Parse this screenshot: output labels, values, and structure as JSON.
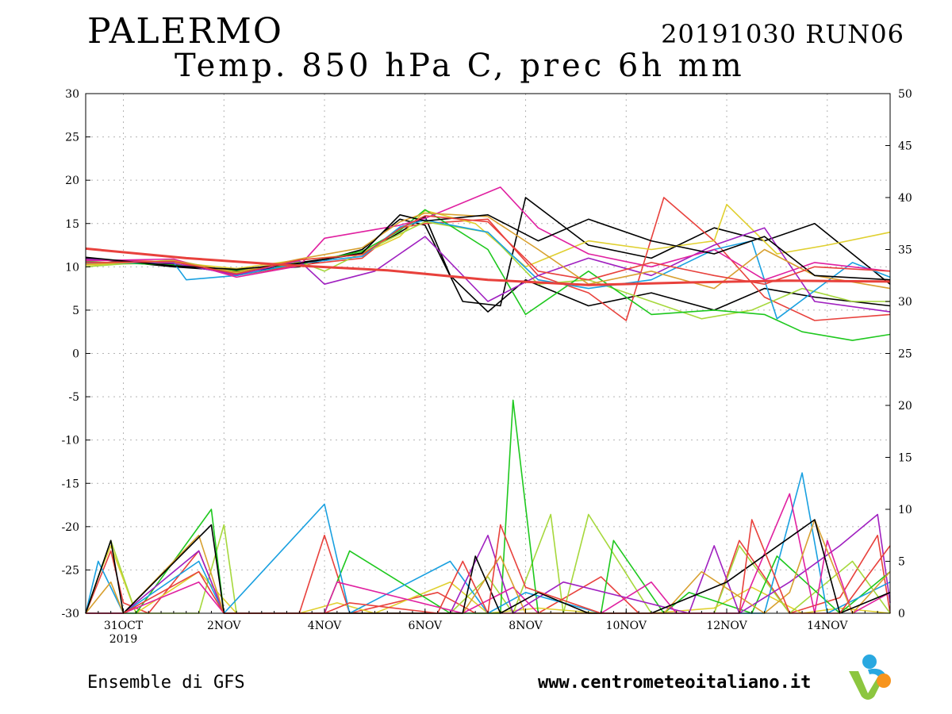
{
  "header": {
    "location": "PALERMO",
    "run": "20191030 RUN06",
    "variable": "Temp. 850 hPa C, prec 6h mm"
  },
  "footer": {
    "model": "Ensemble di GFS",
    "website": "www.centrometeoitaliano.it"
  },
  "logo": {
    "name": "centrometeoitaliano-logo",
    "colors": [
      "#29a8e0",
      "#8cc63f",
      "#f7941d"
    ]
  },
  "colors": {
    "mean": "#e8413c",
    "members": [
      "#000000",
      "#000000",
      "#e8413c",
      "#e0d030",
      "#a6d83c",
      "#1ec81e",
      "#19a0e0",
      "#a020c0",
      "#e020a0",
      "#d8a030",
      "#000000",
      "#e8413c",
      "#e0d030",
      "#1ec81e",
      "#a020c0",
      "#19a0e0",
      "#a6d83c",
      "#d8a030",
      "#000000",
      "#e020a0"
    ]
  },
  "chart_data": {
    "type": "line",
    "x_start": "2019-10-30T06",
    "x_end": "2019-11-15T06",
    "x_ticks": [
      {
        "date": "2019-10-31",
        "label": "31OCT",
        "sublabel": "2019"
      },
      {
        "date": "2019-11-02",
        "label": "2NOV"
      },
      {
        "date": "2019-11-04",
        "label": "4NOV"
      },
      {
        "date": "2019-11-06",
        "label": "6NOV"
      },
      {
        "date": "2019-11-08",
        "label": "8NOV"
      },
      {
        "date": "2019-11-10",
        "label": "10NOV"
      },
      {
        "date": "2019-11-12",
        "label": "12NOV"
      },
      {
        "date": "2019-11-14",
        "label": "14NOV"
      }
    ],
    "y_left": {
      "label": "",
      "ylim": [
        -30,
        30
      ],
      "ticks": [
        30,
        25,
        20,
        15,
        10,
        5,
        0,
        -5,
        -10,
        -15,
        -20,
        -25,
        -30
      ]
    },
    "y_right": {
      "label": "",
      "ylim": [
        0,
        50
      ],
      "ticks": [
        50,
        45,
        40,
        35,
        30,
        25,
        20,
        15,
        10,
        5,
        0
      ]
    },
    "grid": true,
    "mean_series": {
      "axis": "left",
      "x": [
        "2019-10-30T06",
        "2019-11-01T06",
        "2019-11-03T06",
        "2019-11-05T06",
        "2019-11-07T06",
        "2019-11-09T06",
        "2019-11-11T06",
        "2019-11-13T06",
        "2019-11-15T06"
      ],
      "values": [
        12.1,
        11.0,
        10.2,
        9.6,
        8.5,
        7.9,
        8.2,
        8.4,
        8.3
      ]
    },
    "temperature_members": [
      {
        "x": [
          "2019-10-30T06",
          "2019-11-01T00",
          "2019-11-02T06",
          "2019-11-03T12",
          "2019-11-04T18",
          "2019-11-05T12",
          "2019-11-06T00",
          "2019-11-06T12",
          "2019-11-07T06",
          "2019-11-08T00",
          "2019-11-09T06",
          "2019-11-10T12",
          "2019-11-11T18",
          "2019-11-12T18",
          "2019-11-13T18",
          "2019-11-15T06"
        ],
        "values": [
          10.5,
          10.3,
          9.2,
          10.5,
          11.5,
          14.0,
          15.8,
          9.0,
          4.8,
          8.5,
          5.5,
          7.0,
          5.0,
          7.5,
          6.5,
          5.5
        ]
      },
      {
        "x": [
          "2019-10-30T06",
          "2019-11-01T00",
          "2019-11-02T06",
          "2019-11-03T12",
          "2019-11-04T18",
          "2019-11-05T12",
          "2019-11-06T00",
          "2019-11-06T18",
          "2019-11-07T12",
          "2019-11-08T00",
          "2019-11-09T06",
          "2019-11-10T12",
          "2019-11-11T18",
          "2019-11-12T18",
          "2019-11-13T18",
          "2019-11-15T06"
        ],
        "values": [
          11.0,
          10.0,
          9.5,
          10.0,
          12.0,
          15.5,
          14.8,
          6.0,
          5.5,
          18.0,
          12.5,
          11.0,
          14.5,
          13.0,
          15.0,
          8.0
        ]
      },
      {
        "x": [
          "2019-10-30T06",
          "2019-11-01T00",
          "2019-11-02T06",
          "2019-11-03T12",
          "2019-11-04T18",
          "2019-11-05T12",
          "2019-11-06T00",
          "2019-11-07T06",
          "2019-11-08T06",
          "2019-11-09T06",
          "2019-11-10T00",
          "2019-11-10T18",
          "2019-11-11T18",
          "2019-11-12T18",
          "2019-11-13T18",
          "2019-11-15T06"
        ],
        "values": [
          10.8,
          10.6,
          9.0,
          10.2,
          11.0,
          14.5,
          15.0,
          15.5,
          9.0,
          7.0,
          3.8,
          18.0,
          13.0,
          6.5,
          3.8,
          4.5
        ]
      },
      {
        "x": [
          "2019-10-30T06",
          "2019-11-01T00",
          "2019-11-02T06",
          "2019-11-03T12",
          "2019-11-04T18",
          "2019-11-05T12",
          "2019-11-06T00",
          "2019-11-07T00",
          "2019-11-08T00",
          "2019-11-09T06",
          "2019-11-10T12",
          "2019-11-11T18",
          "2019-11-12T00",
          "2019-11-13T00",
          "2019-11-14T00",
          "2019-11-15T06"
        ],
        "values": [
          10.2,
          10.5,
          9.8,
          10.8,
          11.5,
          13.5,
          16.5,
          15.0,
          10.0,
          13.0,
          12.0,
          13.0,
          17.2,
          11.5,
          12.5,
          14.0
        ]
      },
      {
        "x": [
          "2019-10-30T06",
          "2019-11-01T00",
          "2019-11-02T06",
          "2019-11-03T12",
          "2019-11-04T00",
          "2019-11-05T12",
          "2019-11-06T00",
          "2019-11-07T06",
          "2019-11-08T06",
          "2019-11-09T06",
          "2019-11-10T12",
          "2019-11-11T12",
          "2019-11-12T12",
          "2019-11-13T12",
          "2019-11-14T12",
          "2019-11-15T06"
        ],
        "values": [
          10.0,
          10.8,
          9.3,
          10.6,
          9.5,
          13.8,
          15.2,
          14.0,
          8.0,
          8.5,
          6.0,
          4.0,
          5.0,
          7.5,
          6.0,
          6.0
        ]
      },
      {
        "x": [
          "2019-10-30T06",
          "2019-11-01T00",
          "2019-11-02T06",
          "2019-11-03T12",
          "2019-11-04T18",
          "2019-11-05T12",
          "2019-11-06T00",
          "2019-11-07T06",
          "2019-11-08T00",
          "2019-11-09T06",
          "2019-11-10T12",
          "2019-11-11T18",
          "2019-11-12T18",
          "2019-11-13T12",
          "2019-11-14T12",
          "2019-11-15T06"
        ],
        "values": [
          10.6,
          10.2,
          9.6,
          10.3,
          11.8,
          14.2,
          16.6,
          12.0,
          4.5,
          9.5,
          4.5,
          5.0,
          4.5,
          2.5,
          1.5,
          2.2
        ]
      },
      {
        "x": [
          "2019-10-30T06",
          "2019-11-01T00",
          "2019-11-01T06",
          "2019-11-02T06",
          "2019-11-03T12",
          "2019-11-04T18",
          "2019-11-05T12",
          "2019-11-06T00",
          "2019-11-07T06",
          "2019-11-08T06",
          "2019-11-09T06",
          "2019-11-10T12",
          "2019-11-11T18",
          "2019-11-12T12",
          "2019-11-13T00",
          "2019-11-14T12",
          "2019-11-15T06"
        ],
        "values": [
          10.4,
          10.5,
          8.5,
          9.0,
          10.4,
          11.2,
          14.6,
          15.4,
          14.0,
          8.5,
          7.5,
          8.5,
          12.0,
          13.0,
          4.0,
          10.5,
          8.8
        ]
      },
      {
        "x": [
          "2019-10-30T06",
          "2019-11-01T00",
          "2019-11-02T06",
          "2019-11-03T12",
          "2019-11-04T00",
          "2019-11-05T00",
          "2019-11-06T00",
          "2019-11-07T06",
          "2019-11-08T06",
          "2019-11-09T06",
          "2019-11-10T12",
          "2019-11-11T18",
          "2019-11-12T18",
          "2019-11-13T18",
          "2019-11-15T06"
        ],
        "values": [
          10.9,
          10.4,
          9.1,
          10.7,
          8.0,
          9.5,
          13.5,
          6.0,
          9.0,
          11.0,
          9.0,
          12.5,
          14.5,
          6.0,
          4.8
        ]
      },
      {
        "x": [
          "2019-10-30T06",
          "2019-11-01T00",
          "2019-11-02T06",
          "2019-11-03T12",
          "2019-11-04T00",
          "2019-11-05T12",
          "2019-11-06T00",
          "2019-11-07T12",
          "2019-11-08T06",
          "2019-11-09T06",
          "2019-11-10T12",
          "2019-11-11T18",
          "2019-11-12T18",
          "2019-11-13T18",
          "2019-11-15T06"
        ],
        "values": [
          10.7,
          10.9,
          8.8,
          10.1,
          13.3,
          14.8,
          15.6,
          19.2,
          14.5,
          11.5,
          10.0,
          12.0,
          8.5,
          10.5,
          9.5
        ]
      },
      {
        "x": [
          "2019-10-30T06",
          "2019-11-01T00",
          "2019-11-02T06",
          "2019-11-03T12",
          "2019-11-04T18",
          "2019-11-05T12",
          "2019-11-06T00",
          "2019-11-07T06",
          "2019-11-08T06",
          "2019-11-09T06",
          "2019-11-10T12",
          "2019-11-11T18",
          "2019-11-12T18",
          "2019-11-13T18",
          "2019-11-15T06"
        ],
        "values": [
          10.3,
          10.7,
          9.4,
          10.9,
          12.2,
          15.2,
          16.2,
          15.8,
          12.0,
          8.0,
          9.5,
          7.5,
          12.0,
          9.0,
          7.5
        ]
      },
      {
        "x": [
          "2019-10-30T06",
          "2019-11-01T00",
          "2019-11-02T06",
          "2019-11-03T12",
          "2019-11-04T18",
          "2019-11-05T12",
          "2019-11-06T00",
          "2019-11-07T06",
          "2019-11-08T06",
          "2019-11-09T06",
          "2019-11-10T12",
          "2019-11-11T18",
          "2019-11-12T18",
          "2019-11-13T18",
          "2019-11-15T06"
        ],
        "values": [
          11.1,
          10.1,
          9.7,
          10.4,
          11.6,
          16.0,
          15.3,
          16.0,
          13.0,
          15.5,
          13.0,
          11.5,
          13.5,
          9.0,
          8.5
        ]
      },
      {
        "x": [
          "2019-10-30T06",
          "2019-11-01T00",
          "2019-11-02T06",
          "2019-11-03T12",
          "2019-11-04T18",
          "2019-11-05T12",
          "2019-11-06T00",
          "2019-11-07T06",
          "2019-11-08T06",
          "2019-11-09T06",
          "2019-11-10T12",
          "2019-11-11T18",
          "2019-11-12T18",
          "2019-11-13T18",
          "2019-11-15T06"
        ],
        "values": [
          10.5,
          10.6,
          9.2,
          10.8,
          11.4,
          14.4,
          15.9,
          15.2,
          9.5,
          8.5,
          10.5,
          9.0,
          8.0,
          10.0,
          9.5
        ]
      }
    ],
    "precipitation_members": [
      {
        "x": [
          "2019-10-30T06",
          "2019-10-30T18",
          "2019-10-31T00",
          "2019-10-31T12",
          "2019-11-01T12",
          "2019-11-02T00",
          "2019-11-03T12",
          "2019-11-04T00",
          "2019-11-04T12",
          "2019-11-06T06",
          "2019-11-07T00",
          "2019-11-08T06",
          "2019-11-09T12",
          "2019-11-10T06",
          "2019-11-11T18",
          "2019-11-12T06",
          "2019-11-13T06",
          "2019-11-14T06",
          "2019-11-15T00",
          "2019-11-15T06"
        ],
        "values": [
          0,
          6,
          1,
          0,
          6,
          0,
          0,
          7.5,
          0,
          2,
          0,
          0,
          3.5,
          0,
          0,
          7,
          0,
          1.5,
          7.5,
          0
        ]
      },
      {
        "x": [
          "2019-10-30T06",
          "2019-10-30T12",
          "2019-10-30T18",
          "2019-10-31T06",
          "2019-11-01T12",
          "2019-11-02T06",
          "2019-11-03T12",
          "2019-11-04T06",
          "2019-11-05T00",
          "2019-11-06T12",
          "2019-11-07T06",
          "2019-11-08T06",
          "2019-11-09T12",
          "2019-11-10T12",
          "2019-11-11T18",
          "2019-11-12T12",
          "2019-11-13T12",
          "2019-11-14T06",
          "2019-11-15T06"
        ],
        "values": [
          0,
          3.5,
          6.5,
          0,
          4,
          0,
          0,
          1,
          0,
          3,
          0,
          0.5,
          0,
          0,
          0.5,
          2.5,
          0,
          0.5,
          0
        ]
      },
      {
        "x": [
          "2019-10-30T06",
          "2019-10-30T18",
          "2019-10-31T06",
          "2019-11-01T12",
          "2019-11-02T00",
          "2019-11-02T06",
          "2019-11-06T12",
          "2019-11-07T06",
          "2019-11-07T18",
          "2019-11-08T12",
          "2019-11-08T18",
          "2019-11-09T06",
          "2019-11-10T12",
          "2019-11-11T18",
          "2019-11-12T06",
          "2019-11-13T06",
          "2019-11-14T12",
          "2019-11-15T06"
        ],
        "values": [
          0,
          7,
          0,
          0,
          8.5,
          0,
          0,
          3.5,
          0,
          9.5,
          0,
          9.5,
          0,
          0,
          6.5,
          0,
          5,
          0
        ]
      },
      {
        "x": [
          "2019-10-30T06",
          "2019-10-31T06",
          "2019-11-01T18",
          "2019-11-02T00",
          "2019-11-04T00",
          "2019-11-04T12",
          "2019-11-06T12",
          "2019-11-07T12",
          "2019-11-07T18",
          "2019-11-08T06",
          "2019-11-09T12",
          "2019-11-09T18",
          "2019-11-10T18",
          "2019-11-11T06",
          "2019-11-12T12",
          "2019-11-13T00",
          "2019-11-14T06",
          "2019-11-15T06"
        ],
        "values": [
          0,
          0,
          10,
          0,
          0,
          6,
          0,
          0,
          20.5,
          0,
          0,
          7,
          0,
          2,
          0,
          5.5,
          0,
          4
        ]
      },
      {
        "x": [
          "2019-10-30T06",
          "2019-10-30T12",
          "2019-10-31T00",
          "2019-11-01T12",
          "2019-11-02T00",
          "2019-11-04T00",
          "2019-11-04T12",
          "2019-11-06T12",
          "2019-11-07T06",
          "2019-11-08T00",
          "2019-11-09T12",
          "2019-11-11T12",
          "2019-11-12T18",
          "2019-11-13T12",
          "2019-11-14T00",
          "2019-11-15T06"
        ],
        "values": [
          0,
          5,
          0,
          5,
          0,
          10.5,
          0,
          5,
          0,
          2,
          0,
          0,
          0,
          13.5,
          0,
          3
        ]
      },
      {
        "x": [
          "2019-10-30T06",
          "2019-10-31T00",
          "2019-11-01T12",
          "2019-11-02T00",
          "2019-11-06T12",
          "2019-11-07T06",
          "2019-11-07T18",
          "2019-11-08T18",
          "2019-11-11T06",
          "2019-11-11T18",
          "2019-11-12T06",
          "2019-11-13T06",
          "2019-11-14T06",
          "2019-11-15T00",
          "2019-11-15T06"
        ],
        "values": [
          0,
          0,
          6,
          0,
          0,
          7.5,
          0,
          3,
          0,
          6.5,
          0,
          3,
          6.5,
          9.5,
          1
        ]
      },
      {
        "x": [
          "2019-10-30T06",
          "2019-10-31T00",
          "2019-11-01T12",
          "2019-11-02T00",
          "2019-11-04T00",
          "2019-11-04T06",
          "2019-11-06T18",
          "2019-11-07T18",
          "2019-11-08T06",
          "2019-11-09T12",
          "2019-11-10T12",
          "2019-11-11T00",
          "2019-11-12T06",
          "2019-11-13T06",
          "2019-11-13T18",
          "2019-11-14T00",
          "2019-11-14T12",
          "2019-11-15T06"
        ],
        "values": [
          0,
          0,
          3,
          0,
          0,
          3,
          0,
          2.5,
          0,
          0,
          3,
          0,
          0,
          11.5,
          0,
          7,
          0,
          2
        ]
      },
      {
        "x": [
          "2019-10-30T06",
          "2019-10-30T18",
          "2019-10-31T00",
          "2019-11-01T12",
          "2019-11-02T00",
          "2019-11-03T12",
          "2019-11-04T00",
          "2019-11-06T18",
          "2019-11-07T12",
          "2019-11-08T00",
          "2019-11-09T00",
          "2019-11-10T18",
          "2019-11-11T12",
          "2019-11-12T18",
          "2019-11-13T06",
          "2019-11-13T18",
          "2019-11-14T12",
          "2019-11-15T06"
        ],
        "values": [
          0,
          3,
          0,
          7.5,
          0,
          0,
          0,
          0,
          5.5,
          0,
          0,
          0,
          4,
          0,
          2,
          9,
          0,
          4
        ]
      },
      {
        "x": [
          "2019-10-30T06",
          "2019-10-30T18",
          "2019-10-31T00",
          "2019-11-01T18",
          "2019-11-02T00",
          "2019-11-03T12",
          "2019-11-04T00",
          "2019-11-06T18",
          "2019-11-07T00",
          "2019-11-07T12",
          "2019-11-08T06",
          "2019-11-09T06",
          "2019-11-10T12",
          "2019-11-12T00",
          "2019-11-13T18",
          "2019-11-14T06",
          "2019-11-15T06"
        ],
        "values": [
          0,
          7,
          0,
          8.5,
          0,
          0,
          0,
          0,
          5.5,
          0,
          2,
          0,
          0,
          3,
          9,
          0,
          2
        ]
      },
      {
        "x": [
          "2019-10-30T06",
          "2019-10-31T00",
          "2019-11-01T12",
          "2019-11-02T00",
          "2019-11-04T00",
          "2019-11-04T12",
          "2019-11-06T06",
          "2019-11-06T18",
          "2019-11-07T06",
          "2019-11-07T12",
          "2019-11-08T00",
          "2019-11-09T12",
          "2019-11-12T06",
          "2019-11-12T12",
          "2019-11-13T06",
          "2019-11-14T06",
          "2019-11-15T06"
        ],
        "values": [
          0,
          0,
          4,
          0,
          0,
          1,
          0,
          5,
          0,
          8.5,
          2.5,
          0,
          0,
          9,
          0,
          0,
          6.5
        ]
      }
    ]
  }
}
